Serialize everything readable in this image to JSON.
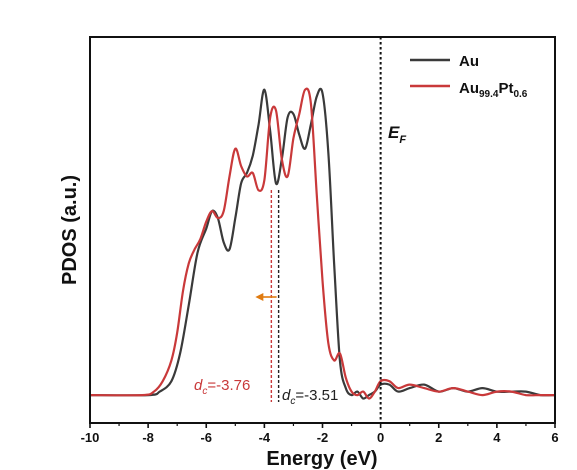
{
  "chart_data": {
    "type": "line",
    "xlabel": "Energy (eV)",
    "ylabel": "PDOS (a.u.)",
    "xlim": [
      -10,
      6
    ],
    "ylim": [
      0,
      1.0
    ],
    "x_ticks": [
      -10,
      -8,
      -6,
      -4,
      -2,
      0,
      2,
      4,
      6
    ],
    "x_tick_labels": [
      "-10",
      "-8",
      "-6",
      "-4",
      "-2",
      "0",
      "2",
      "4",
      "6"
    ],
    "legend_position": "top-right",
    "series": [
      {
        "name": "Au",
        "name_main": "Au",
        "color": "#3a3a3a",
        "x": [
          -10,
          -8,
          -7.6,
          -7.2,
          -6.9,
          -6.6,
          -6.3,
          -6.0,
          -5.8,
          -5.6,
          -5.4,
          -5.2,
          -5.0,
          -4.8,
          -4.6,
          -4.4,
          -4.2,
          -4.0,
          -3.8,
          -3.6,
          -3.4,
          -3.2,
          -3.0,
          -2.8,
          -2.6,
          -2.4,
          -2.2,
          -2.0,
          -1.8,
          -1.6,
          -1.4,
          -1.2,
          -1.0,
          -0.8,
          -0.6,
          -0.4,
          -0.2,
          0.0,
          0.3,
          0.6,
          1.0,
          1.5,
          2.0,
          2.5,
          3.0,
          3.5,
          4.0,
          4.5,
          5.0,
          5.5,
          6.0
        ],
        "y": [
          0.02,
          0.02,
          0.03,
          0.06,
          0.14,
          0.28,
          0.43,
          0.5,
          0.55,
          0.53,
          0.46,
          0.44,
          0.53,
          0.63,
          0.66,
          0.71,
          0.8,
          0.9,
          0.78,
          0.63,
          0.7,
          0.82,
          0.83,
          0.77,
          0.73,
          0.8,
          0.88,
          0.89,
          0.72,
          0.4,
          0.12,
          0.04,
          0.02,
          0.03,
          0.01,
          0.02,
          0.03,
          0.05,
          0.05,
          0.03,
          0.04,
          0.05,
          0.03,
          0.04,
          0.03,
          0.04,
          0.03,
          0.03,
          0.03,
          0.02,
          0.02
        ]
      },
      {
        "name": "Au99.4Pt0.6",
        "name_main": "Au",
        "name_sub1": "99.4",
        "name_mid": "Pt",
        "name_sub2": "0.6",
        "color": "#c9393a",
        "x": [
          -10,
          -8.2,
          -7.8,
          -7.5,
          -7.2,
          -7.0,
          -6.8,
          -6.6,
          -6.4,
          -6.2,
          -6.0,
          -5.8,
          -5.6,
          -5.4,
          -5.2,
          -5.0,
          -4.8,
          -4.6,
          -4.4,
          -4.2,
          -4.0,
          -3.8,
          -3.6,
          -3.4,
          -3.2,
          -3.0,
          -2.8,
          -2.6,
          -2.4,
          -2.2,
          -2.0,
          -1.8,
          -1.6,
          -1.4,
          -1.2,
          -1.0,
          -0.8,
          -0.6,
          -0.4,
          -0.2,
          0.0,
          0.3,
          0.6,
          1.0,
          1.5,
          2.0,
          2.5,
          3.0,
          3.5,
          4.0,
          4.5,
          5.0,
          5.5,
          6.0
        ],
        "y": [
          0.02,
          0.02,
          0.03,
          0.06,
          0.12,
          0.2,
          0.32,
          0.4,
          0.44,
          0.47,
          0.52,
          0.55,
          0.53,
          0.55,
          0.65,
          0.73,
          0.68,
          0.65,
          0.66,
          0.61,
          0.64,
          0.82,
          0.84,
          0.7,
          0.65,
          0.76,
          0.83,
          0.9,
          0.86,
          0.6,
          0.35,
          0.17,
          0.12,
          0.14,
          0.07,
          0.03,
          0.02,
          0.03,
          0.01,
          0.03,
          0.06,
          0.06,
          0.04,
          0.05,
          0.04,
          0.03,
          0.04,
          0.03,
          0.02,
          0.03,
          0.03,
          0.02,
          0.02,
          0.02
        ]
      }
    ],
    "annotations": {
      "fermi_label_main": "E",
      "fermi_label_sub": "F",
      "fermi_x": 0,
      "d_center_red": {
        "x": -3.76,
        "symbol": "d",
        "sub": "c",
        "text": "=-3.76",
        "color": "#c9393a"
      },
      "d_center_black": {
        "x": -3.51,
        "symbol": "d",
        "sub": "c",
        "text": "=-3.51",
        "color": "#222222"
      },
      "arrow_color": "#e07b10",
      "arrow_direction": "left"
    }
  }
}
